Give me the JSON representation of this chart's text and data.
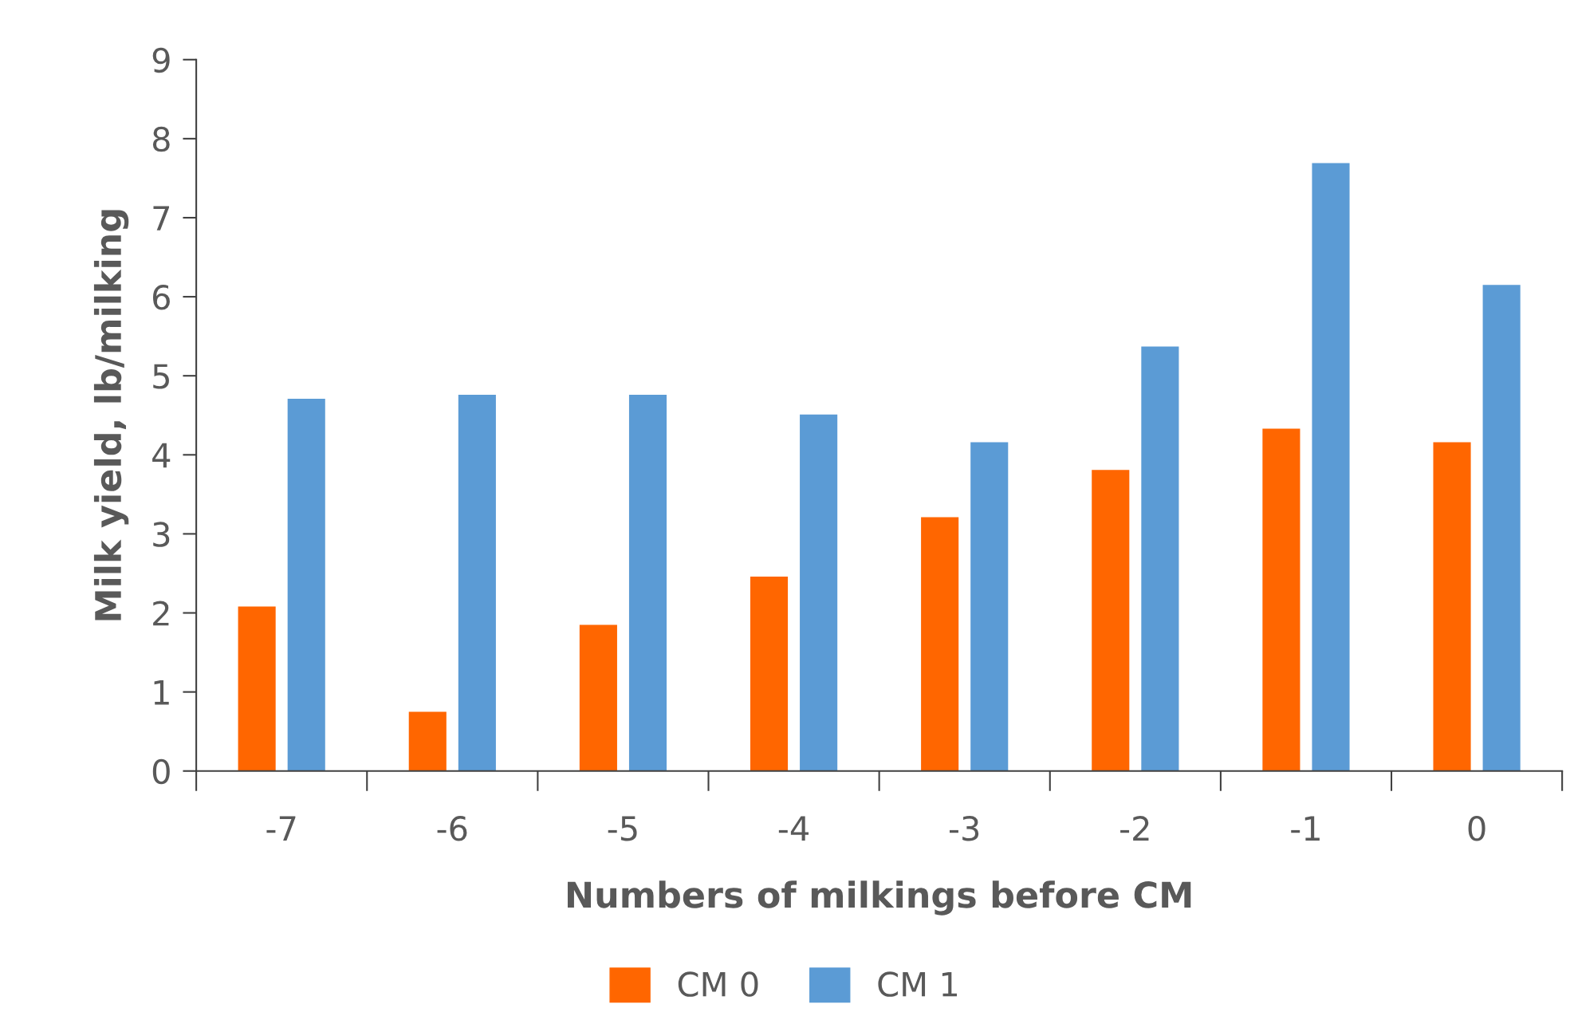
{
  "chart_data": {
    "type": "bar",
    "xlabel": "Numbers of milkings before CM",
    "ylabel": "Milk yield, lb/milking",
    "categories": [
      "-7",
      "-6",
      "-5",
      "-4",
      "-3",
      "-2",
      "-1",
      "0"
    ],
    "series": [
      {
        "name": "CM 0",
        "color": "#ff6600",
        "values": [
          2.08,
          0.75,
          1.85,
          2.46,
          3.21,
          3.81,
          4.33,
          4.16
        ]
      },
      {
        "name": "CM 1",
        "color": "#5b9bd5",
        "values": [
          4.71,
          4.76,
          4.76,
          4.51,
          4.16,
          5.37,
          7.69,
          6.15
        ]
      }
    ],
    "ylim": [
      0,
      9
    ],
    "yticks": [
      0,
      1,
      2,
      3,
      4,
      5,
      6,
      7,
      8,
      9
    ],
    "grid": false,
    "legend": "bottom"
  }
}
